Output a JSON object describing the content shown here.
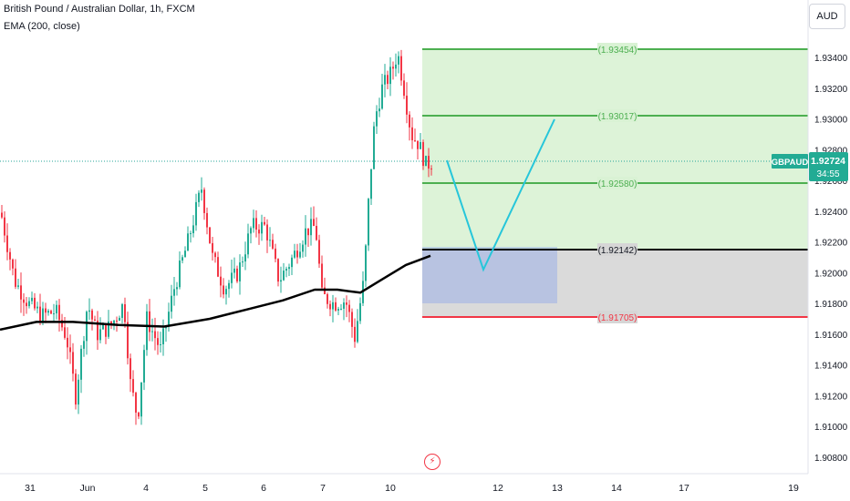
{
  "header": {
    "symbol_title": "British Pound / Australian Dollar, 1h, FXCM",
    "indicator": "EMA (200, close)"
  },
  "currency_button": "AUD",
  "price_axis": {
    "labels": [
      "1.93400",
      "1.93200",
      "1.93000",
      "1.92800",
      "1.92600",
      "1.92400",
      "1.92200",
      "1.92000",
      "1.91800",
      "1.91600",
      "1.91400",
      "1.91200",
      "1.91000",
      "1.90800"
    ],
    "values": [
      1.934,
      1.932,
      1.93,
      1.928,
      1.926,
      1.924,
      1.922,
      1.92,
      1.918,
      1.916,
      1.914,
      1.912,
      1.91,
      1.908
    ]
  },
  "time_axis": {
    "labels": [
      "31",
      "Jun",
      "4",
      "5",
      "6",
      "7",
      "10",
      "12",
      "13",
      "14",
      "17",
      "19"
    ]
  },
  "position_levels": {
    "target_2": "(1.93454)",
    "target_1": "(1.93017)",
    "target_0": "(1.92580)",
    "entry": "(1.92142)",
    "stop": "(1.91705)"
  },
  "level_values": {
    "target_2": 1.93454,
    "target_1": 1.93017,
    "target_0": 1.9258,
    "entry": 1.92142,
    "stop": 1.91705
  },
  "price_tag": {
    "symbol": "GBPAUD",
    "price": "1.92724",
    "countdown": "34:55",
    "value": 1.92724
  },
  "colors": {
    "bull": "#22ab94",
    "bear": "#f23645",
    "ema": "#000000",
    "target_zone": "#d9f2d4",
    "stop_zone": "#d6d6d6",
    "green_line": "#4caf50",
    "red_line": "#f23645",
    "projection": "#26c6da",
    "axis_text": "#131722"
  }
}
